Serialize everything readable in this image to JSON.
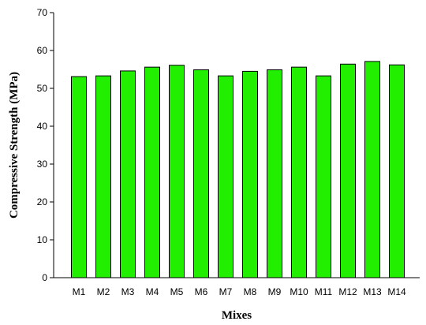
{
  "chart_data": {
    "type": "bar",
    "categories": [
      "M1",
      "M2",
      "M3",
      "M4",
      "M5",
      "M6",
      "M7",
      "M8",
      "M9",
      "M10",
      "M11",
      "M12",
      "M13",
      "M14"
    ],
    "values": [
      53.1,
      53.3,
      54.6,
      55.6,
      56.1,
      54.9,
      53.3,
      54.5,
      54.9,
      55.6,
      53.3,
      56.4,
      57.1,
      56.2
    ],
    "title": "",
    "xlabel": "Mixes",
    "ylabel": "Compressive Strength (MPa)",
    "ylim": [
      0,
      70
    ],
    "yticks": [
      0,
      10,
      20,
      30,
      40,
      50,
      60,
      70
    ],
    "grid": false,
    "bar_color": "#22ee00",
    "bar_outline": "#000000"
  }
}
